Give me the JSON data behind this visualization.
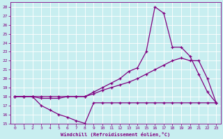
{
  "xlabel": "Windchill (Refroidissement éolien,°C)",
  "bg_color": "#c8eef0",
  "line_color": "#800080",
  "grid_color": "#ffffff",
  "xlim": [
    -0.5,
    23.5
  ],
  "ylim": [
    15,
    28.5
  ],
  "yticks": [
    15,
    16,
    17,
    18,
    19,
    20,
    21,
    22,
    23,
    24,
    25,
    26,
    27,
    28
  ],
  "xticks": [
    0,
    1,
    2,
    3,
    4,
    5,
    6,
    7,
    8,
    9,
    10,
    11,
    12,
    13,
    14,
    15,
    16,
    17,
    18,
    19,
    20,
    21,
    22,
    23
  ],
  "line1_x": [
    0,
    1,
    2,
    3,
    4,
    5,
    6,
    7,
    8,
    9,
    10,
    11,
    12,
    13,
    14,
    15,
    16,
    17,
    18,
    19,
    20,
    21,
    22,
    23
  ],
  "line1_y": [
    18,
    18,
    18,
    17.0,
    16.5,
    16.0,
    15.7,
    15.3,
    15.0,
    17.3,
    17.3,
    17.3,
    17.3,
    17.3,
    17.3,
    17.3,
    17.3,
    17.3,
    17.3,
    17.3,
    17.3,
    17.3,
    17.3,
    17.3
  ],
  "line2_x": [
    0,
    1,
    2,
    3,
    4,
    5,
    6,
    7,
    8,
    9,
    10,
    11,
    12,
    13,
    14,
    15,
    16,
    17,
    18,
    19,
    20,
    21,
    22,
    23
  ],
  "line2_y": [
    18,
    18,
    18,
    18.0,
    18.0,
    18.0,
    18.0,
    18.0,
    18.0,
    18.3,
    18.7,
    19.0,
    19.3,
    19.6,
    20.0,
    20.5,
    21.0,
    21.5,
    22.0,
    22.3,
    22.0,
    22.0,
    20.0,
    17.3
  ],
  "line3_x": [
    0,
    1,
    2,
    3,
    4,
    5,
    6,
    7,
    8,
    9,
    10,
    11,
    12,
    13,
    14,
    15,
    16,
    17,
    18,
    19,
    20,
    21,
    22,
    23
  ],
  "line3_y": [
    18,
    18,
    18,
    17.8,
    17.8,
    17.8,
    18.0,
    18.0,
    18.0,
    18.5,
    19.0,
    19.5,
    20.0,
    20.8,
    21.2,
    23.0,
    28.0,
    27.3,
    23.5,
    23.5,
    22.5,
    20.5,
    18.5,
    17.3
  ]
}
